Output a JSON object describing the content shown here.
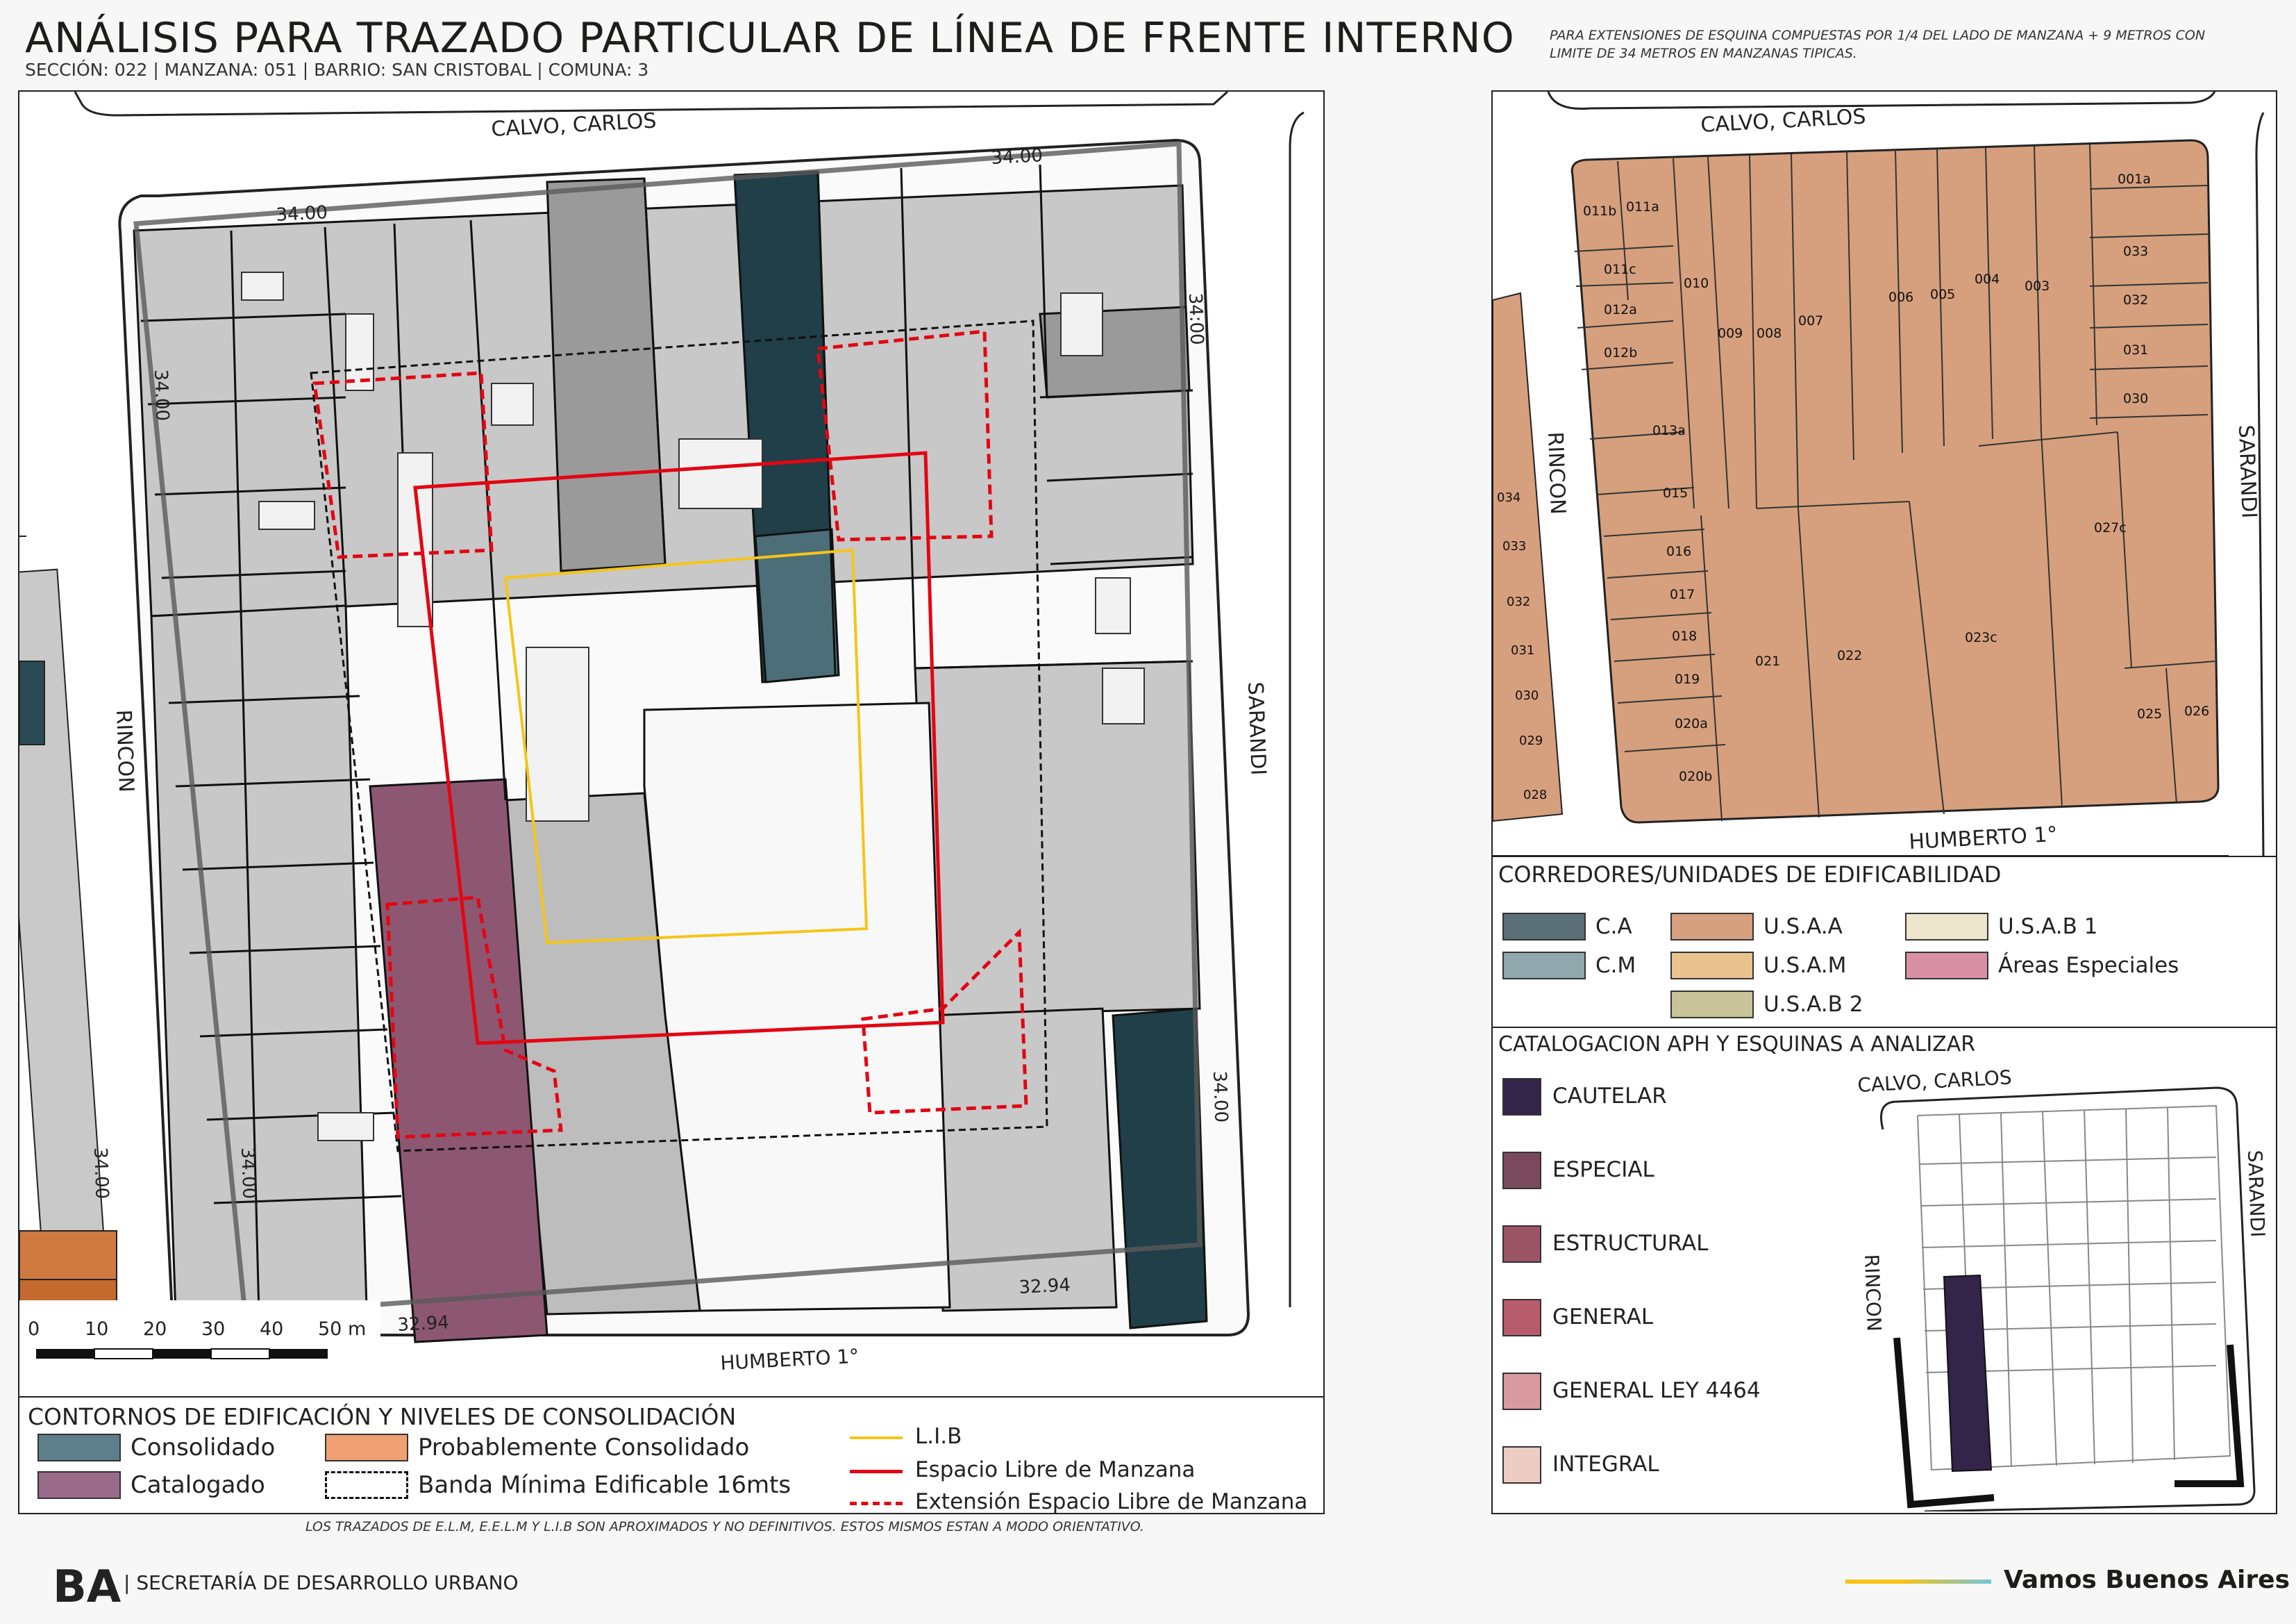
{
  "header": {
    "title": "ANÁLISIS PARA TRAZADO PARTICULAR DE LÍNEA DE FRENTE INTERNO",
    "subtitle": "SECCIÓN: 022 |  MANZANA: 051 | BARRIO: SAN CRISTOBAL | COMUNA: 3",
    "note": "PARA EXTENSIONES DE ESQUINA COMPUESTAS POR 1/4 DEL LADO DE MANZANA + 9 METROS CON LIMITE DE 34 METROS EN MANZANAS TIPICAS."
  },
  "main_map": {
    "streets": {
      "north": "CALVO, CARLOS",
      "south": "HUMBERTO 1°",
      "west": "RINCON",
      "east": "SARANDI"
    },
    "dimensions": {
      "north_left": "34.00",
      "north_right": "34.00",
      "west_top": "34.00",
      "west_bottom": "34.00",
      "east_top": "34:00",
      "east_bottom": "34.00",
      "south_left": "32.94",
      "south_right": "32.94",
      "far_left": "34.00"
    },
    "scale_bar": {
      "labels": [
        "0",
        "10",
        "20",
        "30",
        "40",
        "50 m"
      ]
    }
  },
  "legend_main": {
    "heading": "CONTORNOS DE EDIFICACIÓN Y NIVELES DE CONSOLIDACIÓN",
    "consolidado": "Consolidado",
    "probablemente": "Probablemente Consolidado",
    "catalogado": "Catalogado",
    "banda": "Banda Mínima Edificable 16mts",
    "lib": "L.I.B",
    "elm": "Espacio Libre de Manzana",
    "eelm": "Extensión Espacio Libre de Manzana"
  },
  "parcel_map": {
    "streets": {
      "north": "CALVO, CARLOS",
      "south": "HUMBERTO 1°",
      "west": "RINCON",
      "east": "SARANDI"
    },
    "parcels": [
      "011b",
      "011a",
      "011c",
      "012a",
      "012b",
      "010",
      "009",
      "008",
      "007",
      "006",
      "005",
      "004",
      "003",
      "001a",
      "033",
      "032",
      "031",
      "030",
      "013a",
      "015",
      "016",
      "017",
      "018",
      "019",
      "020a",
      "020b",
      "021",
      "022",
      "023c",
      "027c",
      "025",
      "026"
    ],
    "neighbor_parcels": [
      "034",
      "033",
      "032",
      "031",
      "030",
      "029",
      "028"
    ]
  },
  "legend_corredores": {
    "heading": "CORREDORES/UNIDADES DE EDIFICABILIDAD",
    "items": [
      "C.A",
      "C.M",
      "U.S.A.A",
      "U.S.A.M",
      "U.S.A.B 2",
      "U.S.A.B 1",
      "Áreas Especiales"
    ],
    "colors": {
      "ca": "#5a6f78",
      "cm": "#8fa7ad",
      "usaa": "#d6a07e",
      "usam": "#e9c28f",
      "usab2": "#c9c39a",
      "usab1": "#eee6cc",
      "especiales": "#d98fa5"
    }
  },
  "legend_aph": {
    "heading": "CATALOGACION APH Y ESQUINAS A ANALIZAR",
    "items": [
      "CAUTELAR",
      "ESPECIAL",
      "ESTRUCTURAL",
      "GENERAL",
      "GENERAL LEY 4464",
      "INTEGRAL"
    ],
    "colors": [
      "#33244a",
      "#7a4a5c",
      "#9b5566",
      "#b85c6c",
      "#d89a9f",
      "#ecccc3"
    ],
    "mini_map": {
      "north": "CALVO, CARLOS",
      "west": "RINCON",
      "east": "SARANDI"
    }
  },
  "footer": {
    "note": "LOS TRAZADOS DE E.L.M, E.E.L.M Y L.I.B SON APROXIMADOS Y NO DEFINITIVOS. ESTOS MISMOS ESTAN A MODO ORIENTATIVO.",
    "logo": "BA",
    "secretaria": "| SECRETARÍA DE DESARROLLO URBANO",
    "vamos": "Vamos Buenos Aires"
  }
}
